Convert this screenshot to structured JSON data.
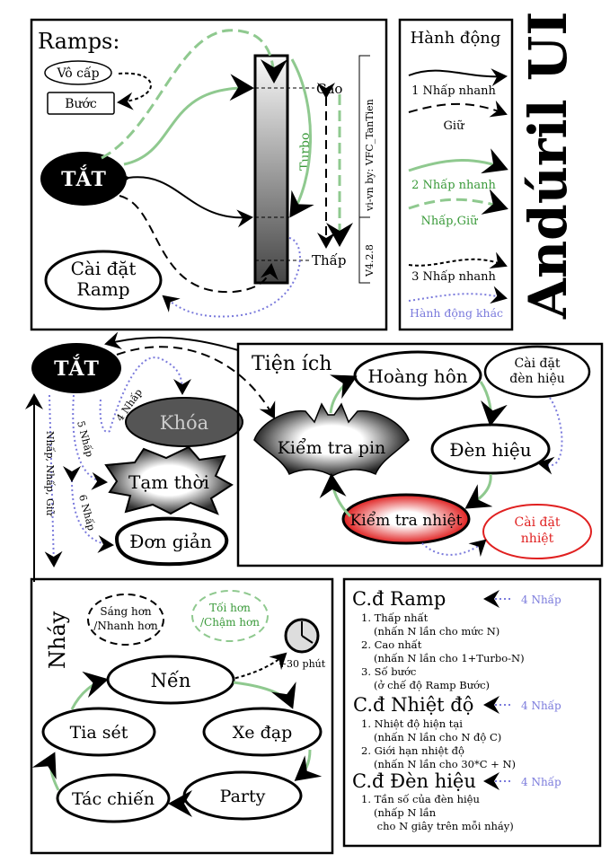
{
  "title": "Andúril UI",
  "colors": {
    "green": "#3a9a3a",
    "green_line": "#8fc98f",
    "blue": "#7b7bdc",
    "red": "#e02020",
    "locked": "#555555"
  },
  "ramps": {
    "heading": "Ramps:",
    "smooth": "Vô cấp",
    "stepped": "Bước",
    "off": "TẮT",
    "ramp_config": [
      "Cài đặt",
      "Ramp"
    ],
    "high": "Cao",
    "low": "Thấp",
    "turbo": "Turbo",
    "credit": "vi-vn by: VFC_TanTien",
    "version": "V4.2.8"
  },
  "legend": {
    "heading": "Hành động",
    "items": [
      "1 Nhấp nhanh",
      "Giữ",
      "2 Nhấp nhanh",
      "Nhấp,Giữ",
      "3 Nhấp nhanh",
      "Hành động khác"
    ]
  },
  "off_menu": {
    "off": "TẮT",
    "lockout": "Khóa",
    "momentary": "Tạm thời",
    "simple": "Đơn giản",
    "click4": "4 Nhấp",
    "click5": "5 Nhấp",
    "click6": "6 Nhấp",
    "click_click_hold": "Nhấp, Nhấp, Giữ"
  },
  "utilities": {
    "heading": "Tiện ích",
    "sunset": "Hoàng hôn",
    "beacon_config": [
      "Cài đặt",
      "đèn hiệu"
    ],
    "battcheck": "Kiểm tra pin",
    "beacon": "Đèn hiệu",
    "tempcheck": "Kiểm tra nhiệt",
    "temp_config": [
      "Cài đặt",
      "nhiệt"
    ]
  },
  "blinky": {
    "heading": "Nháy",
    "brighter": [
      "Sáng hơn",
      "/Nhanh hơn"
    ],
    "dimmer": [
      "Tối hơn",
      "/Chậm hơn"
    ],
    "timer": "+30 phút",
    "candle": "Nến",
    "bike": "Xe đạp",
    "lightning": "Tia sét",
    "party": "Party",
    "tactical": "Tác chiến"
  },
  "config": {
    "sections": [
      {
        "title": "C.đ Ramp",
        "shortcut": "4 Nhấp",
        "lines": [
          "1. Thấp nhất",
          "(nhấn N lần cho mức N)",
          "2. Cao nhất",
          "(nhấn N lần cho 1+Turbo-N)",
          "3. Số bước",
          "(ở chế độ Ramp Bước)"
        ]
      },
      {
        "title": "C.đ Nhiệt độ",
        "shortcut": "4 Nhấp",
        "lines": [
          "1. Nhiệt độ hiện tại",
          "(nhấn N lần cho N độ C)",
          "2. Giới hạn nhiệt độ",
          "(nhấn N lần cho 30*C + N)"
        ]
      },
      {
        "title": "C.đ Đèn hiệu",
        "shortcut": "4 Nhấp",
        "lines": [
          "1. Tần số của đèn hiệu",
          "(nhấp N lần",
          " cho N giây trên mỗi nháy)"
        ]
      }
    ]
  }
}
